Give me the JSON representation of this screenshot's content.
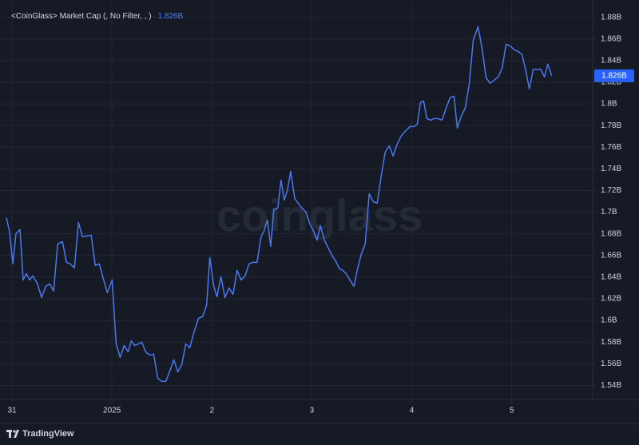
{
  "chart_data": {
    "type": "line",
    "title": "<CoinGlass> Market Cap (, No Filter, , )",
    "last_value_label": "1.826B",
    "watermark": "coinglass",
    "footer_brand": "TradingView",
    "color": "#4a78f0",
    "grid": true,
    "x": [
      -0.056,
      -0.024,
      0.008,
      0.04,
      0.08,
      0.112,
      0.144,
      0.176,
      0.208,
      0.256,
      0.296,
      0.337,
      0.377,
      0.417,
      0.457,
      0.505,
      0.545,
      0.585,
      0.625,
      0.665,
      0.705,
      0.745,
      0.793,
      0.833,
      0.873,
      0.913,
      0.954,
      1.002,
      1.042,
      1.082,
      1.122,
      1.162,
      1.194,
      1.226,
      1.266,
      1.298,
      1.338,
      1.378,
      1.418,
      1.458,
      1.499,
      1.539,
      1.579,
      1.619,
      1.659,
      1.699,
      1.739,
      1.779,
      1.819,
      1.867,
      1.907,
      1.947,
      1.979,
      2.019,
      2.051,
      2.091,
      2.131,
      2.171,
      2.212,
      2.252,
      2.292,
      2.332,
      2.372,
      2.412,
      2.452,
      2.492,
      2.524,
      2.556,
      2.588,
      2.62,
      2.66,
      2.692,
      2.724,
      2.756,
      2.788,
      2.829,
      2.869,
      2.901,
      2.941,
      2.981,
      3.021,
      3.053,
      3.085,
      3.125,
      3.165,
      3.205,
      3.245,
      3.277,
      3.309,
      3.349,
      3.381,
      3.422,
      3.454,
      3.494,
      3.534,
      3.574,
      3.614,
      3.654,
      3.694,
      3.734,
      3.774,
      3.814,
      3.854,
      3.894,
      3.934,
      3.983,
      4.023,
      4.055,
      4.087,
      4.119,
      4.151,
      4.191,
      4.223,
      4.263,
      4.303,
      4.343,
      4.383,
      4.423,
      4.455,
      4.495,
      4.535,
      4.575,
      4.615,
      4.663,
      4.703,
      4.744,
      4.784,
      4.824,
      4.864,
      4.904,
      4.944,
      4.984,
      5.024,
      5.064,
      5.104,
      5.144,
      5.176,
      5.216,
      5.248,
      5.288,
      5.328,
      5.361,
      5.401
    ],
    "values": [
      1.6949,
      1.6817,
      1.6522,
      1.6802,
      1.6839,
      1.6374,
      1.6433,
      1.6374,
      1.6411,
      1.6337,
      1.6212,
      1.6315,
      1.6337,
      1.6271,
      1.6706,
      1.6728,
      1.6537,
      1.6522,
      1.6485,
      1.6906,
      1.6773,
      1.678,
      1.6787,
      1.6507,
      1.6522,
      1.6389,
      1.6256,
      1.6374,
      1.5784,
      1.5658,
      1.5769,
      1.571,
      1.5813,
      1.5769,
      1.5784,
      1.5799,
      1.571,
      1.568,
      1.5688,
      1.5466,
      1.5437,
      1.5437,
      1.5533,
      1.5636,
      1.5525,
      1.5592,
      1.5784,
      1.5747,
      1.5887,
      1.602,
      1.6035,
      1.6138,
      1.6581,
      1.6315,
      1.6219,
      1.6404,
      1.6212,
      1.63,
      1.6241,
      1.6463,
      1.6374,
      1.6411,
      1.6522,
      1.6537,
      1.6537,
      1.6773,
      1.6832,
      1.6928,
      1.6684,
      1.7024,
      1.7038,
      1.7297,
      1.7112,
      1.7201,
      1.7378,
      1.7127,
      1.7075,
      1.7038,
      1.7001,
      1.6891,
      1.6817,
      1.6743,
      1.6876,
      1.6743,
      1.6669,
      1.6596,
      1.6537,
      1.6477,
      1.6463,
      1.6426,
      1.6374,
      1.6315,
      1.6463,
      1.661,
      1.6706,
      1.7171,
      1.7097,
      1.7083,
      1.7334,
      1.7555,
      1.7614,
      1.7518,
      1.7629,
      1.7703,
      1.7747,
      1.7791,
      1.7791,
      1.7813,
      1.8013,
      1.8027,
      1.7865,
      1.785,
      1.7865,
      1.7865,
      1.785,
      1.7961,
      1.8057,
      1.8072,
      1.7776,
      1.7887,
      1.7961,
      1.8182,
      1.8588,
      1.8714,
      1.8514,
      1.8241,
      1.819,
      1.8219,
      1.8249,
      1.833,
      1.8551,
      1.8537,
      1.85,
      1.8485,
      1.8455,
      1.8293,
      1.8138,
      1.8322,
      1.8315,
      1.8322,
      1.8249,
      1.8367,
      1.826
    ],
    "xlim": [
      -0.12,
      5.81
    ],
    "xticks": [
      {
        "value": 0,
        "label": "31"
      },
      {
        "value": 1,
        "label": "2025"
      },
      {
        "value": 2,
        "label": "2"
      },
      {
        "value": 3,
        "label": "3"
      },
      {
        "value": 4,
        "label": "4"
      },
      {
        "value": 5,
        "label": "5"
      }
    ],
    "ylim": [
      1.527,
      1.896
    ],
    "yticks": [
      {
        "value": 1.54,
        "label": "1.54B"
      },
      {
        "value": 1.56,
        "label": "1.56B"
      },
      {
        "value": 1.58,
        "label": "1.58B"
      },
      {
        "value": 1.6,
        "label": "1.6B"
      },
      {
        "value": 1.62,
        "label": "1.62B"
      },
      {
        "value": 1.64,
        "label": "1.64B"
      },
      {
        "value": 1.66,
        "label": "1.66B"
      },
      {
        "value": 1.68,
        "label": "1.68B"
      },
      {
        "value": 1.7,
        "label": "1.7B"
      },
      {
        "value": 1.72,
        "label": "1.72B"
      },
      {
        "value": 1.74,
        "label": "1.74B"
      },
      {
        "value": 1.76,
        "label": "1.76B"
      },
      {
        "value": 1.78,
        "label": "1.78B"
      },
      {
        "value": 1.8,
        "label": "1.8B"
      },
      {
        "value": 1.82,
        "label": "1.82B"
      },
      {
        "value": 1.84,
        "label": "1.84B"
      },
      {
        "value": 1.86,
        "label": "1.86B"
      },
      {
        "value": 1.88,
        "label": "1.88B"
      }
    ]
  }
}
